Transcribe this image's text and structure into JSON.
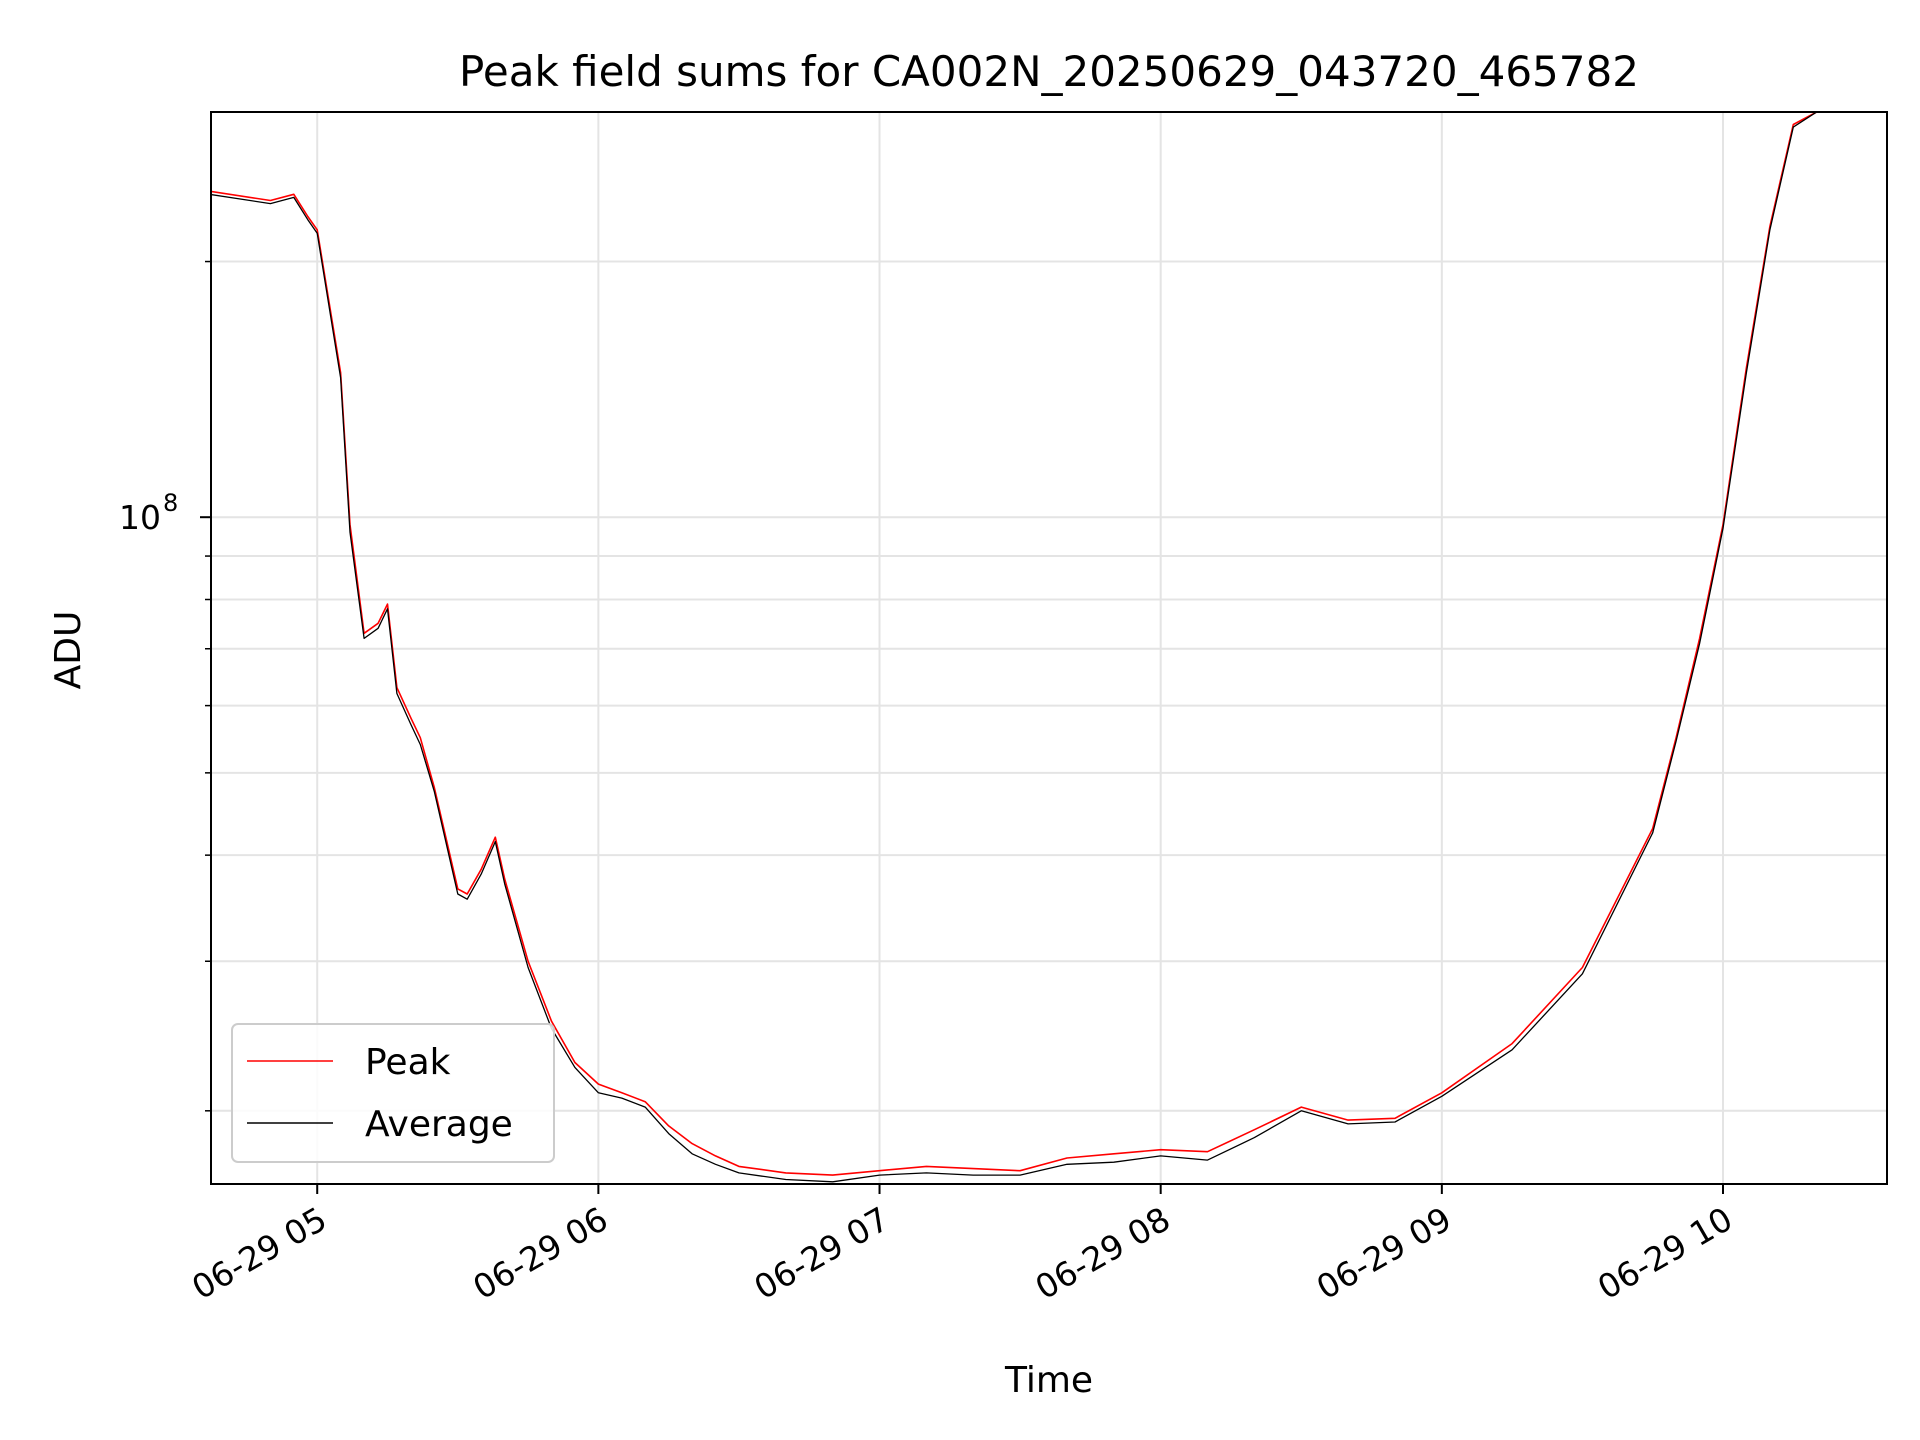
{
  "chart_data": {
    "type": "line",
    "title": "Peak field sums for CA002N_20250629_043720_465782",
    "xlabel": "Time",
    "ylabel": "ADU",
    "y_scale": "log",
    "ylim": [
      16400000,
      300000000
    ],
    "xlim": [
      "2025-06-29 04:37:20",
      "2025-06-29 10:35:00"
    ],
    "x_ticks": [
      {
        "t": "2025-06-29 05:00",
        "label": "06-29 05"
      },
      {
        "t": "2025-06-29 06:00",
        "label": "06-29 06"
      },
      {
        "t": "2025-06-29 07:00",
        "label": "06-29 07"
      },
      {
        "t": "2025-06-29 08:00",
        "label": "06-29 08"
      },
      {
        "t": "2025-06-29 09:00",
        "label": "06-29 09"
      },
      {
        "t": "2025-06-29 10:00",
        "label": "06-29 10"
      }
    ],
    "y_major_ticks": [
      {
        "value": 100000000,
        "base": "10",
        "exp": "8"
      }
    ],
    "y_minor_ticks": [
      20000000,
      30000000,
      40000000,
      50000000,
      60000000,
      70000000,
      80000000,
      90000000,
      200000000
    ],
    "grid": true,
    "legend_position": "lower-left",
    "series": [
      {
        "name": "Peak",
        "color": "#ff0000",
        "x": [
          "04:37",
          "04:50",
          "04:55",
          "04:58",
          "05:00",
          "05:05",
          "05:07",
          "05:10",
          "05:13",
          "05:15",
          "05:17",
          "05:20",
          "05:22",
          "05:25",
          "05:30",
          "05:32",
          "05:35",
          "05:38",
          "05:40",
          "05:45",
          "05:50",
          "05:55",
          "06:00",
          "06:05",
          "06:10",
          "06:15",
          "06:20",
          "06:25",
          "06:30",
          "06:40",
          "06:50",
          "07:00",
          "07:10",
          "07:20",
          "07:30",
          "07:40",
          "07:50",
          "08:00",
          "08:10",
          "08:20",
          "08:30",
          "08:40",
          "08:50",
          "09:00",
          "09:15",
          "09:30",
          "09:45",
          "09:50",
          "09:55",
          "10:00",
          "10:05",
          "10:10",
          "10:15",
          "10:20",
          "10:35"
        ],
        "y": [
          242000000,
          236000000,
          240000000,
          226000000,
          218000000,
          148000000,
          98000000,
          73000000,
          75000000,
          79000000,
          63000000,
          58000000,
          55000000,
          48000000,
          36500000,
          36000000,
          38500000,
          42000000,
          37500000,
          30000000,
          25500000,
          22800000,
          21500000,
          21000000,
          20500000,
          19200000,
          18300000,
          17700000,
          17200000,
          16900000,
          16800000,
          17000000,
          17200000,
          17100000,
          17000000,
          17600000,
          17800000,
          18000000,
          17900000,
          19000000,
          20200000,
          19500000,
          19600000,
          21000000,
          24000000,
          29500000,
          43000000,
          55000000,
          72000000,
          98000000,
          150000000,
          220000000,
          290000000,
          300000000,
          300000000
        ]
      },
      {
        "name": "Average",
        "color": "#000000",
        "x": [
          "04:37",
          "04:50",
          "04:55",
          "04:58",
          "05:00",
          "05:05",
          "05:07",
          "05:10",
          "05:13",
          "05:15",
          "05:17",
          "05:20",
          "05:22",
          "05:25",
          "05:30",
          "05:32",
          "05:35",
          "05:38",
          "05:40",
          "05:45",
          "05:50",
          "05:55",
          "06:00",
          "06:05",
          "06:10",
          "06:15",
          "06:20",
          "06:25",
          "06:30",
          "06:40",
          "06:50",
          "07:00",
          "07:10",
          "07:20",
          "07:30",
          "07:40",
          "07:50",
          "08:00",
          "08:10",
          "08:20",
          "08:30",
          "08:40",
          "08:50",
          "09:00",
          "09:15",
          "09:30",
          "09:45",
          "09:50",
          "09:55",
          "10:00",
          "10:05",
          "10:10",
          "10:15",
          "10:20",
          "10:35"
        ],
        "y": [
          240000000,
          234000000,
          238000000,
          224000000,
          216000000,
          146000000,
          96000000,
          72000000,
          74000000,
          78000000,
          62000000,
          57000000,
          54000000,
          47500000,
          36000000,
          35500000,
          38000000,
          41500000,
          37000000,
          29500000,
          25000000,
          22500000,
          21000000,
          20700000,
          20200000,
          18800000,
          17800000,
          17300000,
          16900000,
          16600000,
          16500000,
          16800000,
          16900000,
          16800000,
          16800000,
          17300000,
          17400000,
          17700000,
          17500000,
          18600000,
          20000000,
          19300000,
          19400000,
          20800000,
          23600000,
          29000000,
          42500000,
          54500000,
          71000000,
          97000000,
          148000000,
          218000000,
          288000000,
          300000000,
          300000000
        ]
      }
    ]
  }
}
